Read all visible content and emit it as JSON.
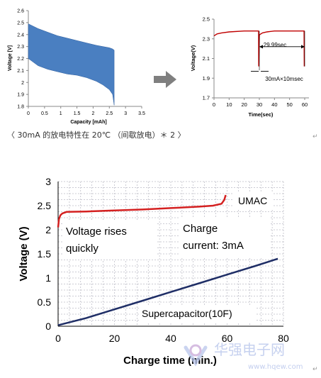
{
  "caption": "〈 30mA 的放电特性在 20℃ （间歇放电）＊ 2 〉",
  "paragraph_mark": "↵",
  "arrow_color": "#7f7f7f",
  "watermark": {
    "cn": "华强电子网",
    "url": "www.hqew.com",
    "color": "#b9c6ec"
  },
  "chart_data": [
    {
      "type": "area",
      "title": "",
      "xlabel": "Capacity [mAh]",
      "ylabel": "Voltage [V]",
      "xlim": [
        0,
        3.5
      ],
      "ylim": [
        1.8,
        2.6
      ],
      "xticks": [
        "0",
        "0.5",
        "1",
        "1.5",
        "2",
        "2.5",
        "3",
        "3.5"
      ],
      "yticks": [
        "1.8",
        "1.9",
        "2",
        "2.1",
        "2.2",
        "2.3",
        "2.4",
        "2.5",
        "2.6"
      ],
      "grid": false,
      "fill_color": "#4a7fc1",
      "series": [
        {
          "x": [
            0,
            0.3,
            0.6,
            0.9,
            1.2,
            1.5,
            1.8,
            2.1,
            2.3,
            2.5,
            2.6,
            2.65
          ],
          "upper": [
            2.49,
            2.45,
            2.42,
            2.39,
            2.37,
            2.35,
            2.33,
            2.31,
            2.3,
            2.29,
            2.28,
            2.27
          ],
          "lower": [
            2.2,
            2.14,
            2.11,
            2.09,
            2.07,
            2.06,
            2.04,
            2.01,
            1.98,
            1.94,
            1.9,
            1.81
          ]
        }
      ]
    },
    {
      "type": "line",
      "title": "",
      "xlabel": "Time(sec)",
      "ylabel": "Voltage(V)",
      "xlim": [
        0,
        60
      ],
      "ylim": [
        1.7,
        2.5
      ],
      "xticks": [
        "0",
        "10",
        "20",
        "30",
        "40",
        "50",
        "60"
      ],
      "yticks": [
        "1.7",
        "1.9",
        "2.1",
        "2.3",
        "2.5"
      ],
      "grid": false,
      "line_color": "#c00000",
      "series": [
        {
          "x": [
            0,
            2,
            5,
            10,
            20,
            29.5,
            29.6,
            30,
            32,
            35,
            40,
            50,
            59.6,
            59.7
          ],
          "y": [
            2.33,
            2.35,
            2.36,
            2.37,
            2.38,
            2.38,
            2.02,
            2.34,
            2.36,
            2.37,
            2.38,
            2.38,
            2.38,
            2.02
          ]
        }
      ],
      "annotations": {
        "interval_label": "29.99sec",
        "pulse_label": "30mA×10msec"
      }
    },
    {
      "type": "line",
      "title": "",
      "xlabel": "Charge time (min.)",
      "ylabel": "Voltage (V)",
      "xlim": [
        0,
        80
      ],
      "ylim": [
        0,
        3
      ],
      "xticks": [
        "0",
        "20",
        "40",
        "60",
        "80"
      ],
      "yticks": [
        "0",
        "0.5",
        "1",
        "1.5",
        "2",
        "2.5",
        "3"
      ],
      "grid": true,
      "series": [
        {
          "name": "UMAC",
          "color": "#d42020",
          "x": [
            0,
            0.3,
            0.8,
            1.5,
            3,
            10,
            20,
            30,
            40,
            50,
            55,
            58,
            59,
            59.5
          ],
          "y": [
            2.05,
            2.22,
            2.3,
            2.34,
            2.37,
            2.38,
            2.4,
            2.42,
            2.45,
            2.48,
            2.5,
            2.54,
            2.62,
            2.72
          ]
        },
        {
          "name": "Supercapacitor(10F)",
          "color": "#1f2e66",
          "x": [
            0,
            10,
            20,
            30,
            40,
            50,
            60,
            70,
            78
          ],
          "y": [
            0.02,
            0.17,
            0.35,
            0.53,
            0.71,
            0.89,
            1.07,
            1.25,
            1.4
          ]
        }
      ],
      "annotations": {
        "rise_label_line1": "Voltage rises",
        "rise_label_line2": "quickly",
        "charge_label_line1": "Charge",
        "charge_label_line2": "current: 3mA"
      }
    }
  ]
}
